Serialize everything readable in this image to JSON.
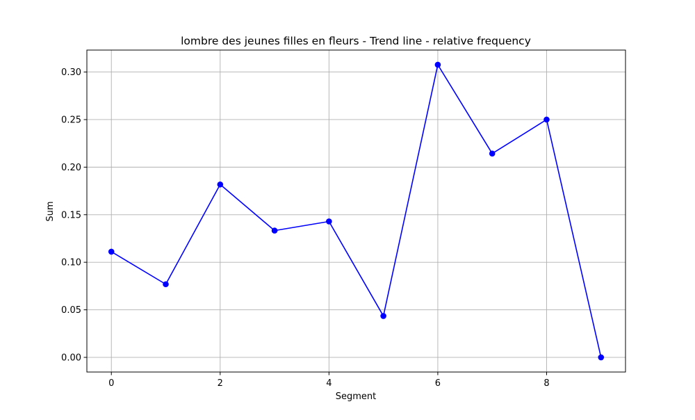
{
  "chart_data": {
    "type": "line",
    "title": "lombre des jeunes filles en fleurs - Trend line - relative frequency",
    "xlabel": "Segment",
    "ylabel": "Sum",
    "x": [
      0,
      1,
      2,
      3,
      4,
      5,
      6,
      7,
      8,
      9
    ],
    "series": [
      {
        "values": [
          0.1111,
          0.0769,
          0.1818,
          0.1333,
          0.1429,
          0.0435,
          0.3077,
          0.2143,
          0.25,
          0.0
        ],
        "color": "#0000ff",
        "marker": "circle"
      }
    ],
    "xlim": [
      -0.45,
      9.45
    ],
    "ylim": [
      -0.0154,
      0.3231
    ],
    "xticks": [
      0,
      2,
      4,
      6,
      8
    ],
    "xtick_labels": [
      "0",
      "2",
      "4",
      "6",
      "8"
    ],
    "yticks": [
      0.0,
      0.05,
      0.1,
      0.15,
      0.2,
      0.25,
      0.3
    ],
    "ytick_labels": [
      "0.00",
      "0.05",
      "0.10",
      "0.15",
      "0.20",
      "0.25",
      "0.30"
    ],
    "grid": true,
    "legend": "none"
  }
}
